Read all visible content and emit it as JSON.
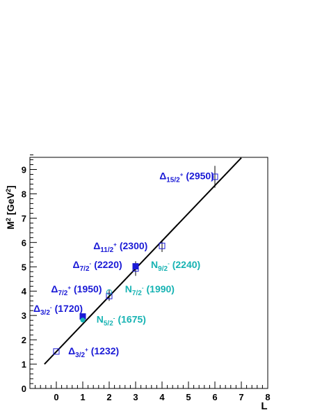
{
  "chart_data": {
    "type": "scatter",
    "title": "",
    "xlabel": "L",
    "ylabel_base": "M",
    "ylabel_sup": "2",
    "ylabel_unit": "[GeV",
    "ylabel_unit_sup": "2",
    "ylabel_unit_close": "]",
    "xlim": [
      -1,
      8
    ],
    "ylim": [
      0,
      9.5
    ],
    "x_ticks": [
      0,
      1,
      2,
      3,
      4,
      5,
      6,
      7,
      8
    ],
    "y_ticks": [
      0,
      1,
      2,
      3,
      4,
      5,
      6,
      7,
      8,
      9
    ],
    "x_tick_labels": [
      "0",
      "1",
      "2",
      "3",
      "4",
      "5",
      "6",
      "7",
      "8"
    ],
    "y_tick_labels": [
      "0",
      "1",
      "2",
      "3",
      "4",
      "5",
      "6",
      "7",
      "8",
      "9"
    ],
    "grid": false,
    "fit_line": {
      "x": [
        -0.45,
        7.0
      ],
      "y": [
        1.0,
        9.48
      ],
      "color": "#000000"
    },
    "points": [
      {
        "x": 0,
        "y": 1.52,
        "err": 0,
        "marker": "open-square",
        "color": "#1a1ad6"
      },
      {
        "x": 1,
        "y": 2.96,
        "err": 0.05,
        "marker": "filled-square",
        "color": "#1a1ad6"
      },
      {
        "x": 1,
        "y": 2.81,
        "err": 0.05,
        "marker": "filled-circle",
        "color": "#17b3b3"
      },
      {
        "x": 2,
        "y": 3.8,
        "err": 0.2,
        "marker": "open-square",
        "color": "#1a1ad6"
      },
      {
        "x": 2,
        "y": 3.96,
        "err": 0.1,
        "marker": "open-circle",
        "color": "#17b3b3"
      },
      {
        "x": 3,
        "y": 4.93,
        "err": 0.3,
        "marker": "open-square",
        "color": "#1a1ad6"
      },
      {
        "x": 3,
        "y": 5.02,
        "err": 0.15,
        "marker": "filled-square",
        "color": "#1a1ad6"
      },
      {
        "x": 4,
        "y": 5.86,
        "err": 0.25,
        "marker": "open-square",
        "color": "#1a1ad6"
      },
      {
        "x": 6,
        "y": 8.7,
        "err": 0.45,
        "marker": "open-square",
        "color": "#1a1ad6"
      }
    ],
    "annotations": [
      {
        "symbol": "Δ",
        "sub": "3/2",
        "sup": "+",
        "mass": "(1232)",
        "x": 0.45,
        "y": 1.4,
        "color": "#1a1ad6"
      },
      {
        "symbol": "Δ",
        "sub": "3/2",
        "sup": "-",
        "mass": "(1720)",
        "x": -0.87,
        "y": 3.15,
        "color": "#1a1ad6"
      },
      {
        "symbol": "Δ",
        "sub": "7/2",
        "sup": "+",
        "mass": "(1950)",
        "x": -0.2,
        "y": 3.95,
        "color": "#1a1ad6"
      },
      {
        "symbol": "Δ",
        "sub": "7/2",
        "sup": "-",
        "mass": "(2220)",
        "x": 0.62,
        "y": 4.95,
        "color": "#1a1ad6"
      },
      {
        "symbol": "Δ",
        "sub": "11/2",
        "sup": "+",
        "mass": "(2300)",
        "x": 1.4,
        "y": 5.72,
        "color": "#1a1ad6"
      },
      {
        "symbol": "Δ",
        "sub": "15/2",
        "sup": "+",
        "mass": "(2950)",
        "x": 3.9,
        "y": 8.6,
        "color": "#1a1ad6"
      },
      {
        "symbol": "N",
        "sub": "5/2",
        "sup": "-",
        "mass": "(1675)",
        "x": 1.52,
        "y": 2.7,
        "color": "#17b3b3"
      },
      {
        "symbol": "N",
        "sub": "7/2",
        "sup": "-",
        "mass": "(1990)",
        "x": 2.6,
        "y": 3.95,
        "color": "#17b3b3"
      },
      {
        "symbol": "N",
        "sub": "9/2",
        "sup": "-",
        "mass": "(2240)",
        "x": 3.58,
        "y": 4.95,
        "color": "#17b3b3"
      }
    ]
  }
}
